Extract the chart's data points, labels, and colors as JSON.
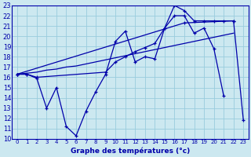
{
  "title": "Graphe des températures (°c)",
  "background_color": "#cce8f0",
  "line_color": "#0000aa",
  "grid_color": "#99ccdd",
  "xlim": [
    -0.5,
    23.5
  ],
  "ylim": [
    10,
    23
  ],
  "x_ticks": [
    0,
    1,
    2,
    3,
    4,
    5,
    6,
    7,
    8,
    9,
    10,
    11,
    12,
    13,
    14,
    15,
    16,
    17,
    18,
    19,
    20,
    21,
    22,
    23
  ],
  "y_ticks": [
    10,
    11,
    12,
    13,
    14,
    15,
    16,
    17,
    18,
    19,
    20,
    21,
    22,
    23
  ],
  "series1_x": [
    0,
    1,
    2,
    3,
    4,
    5,
    6,
    7,
    8,
    9,
    10,
    11,
    12,
    13,
    14,
    15,
    16,
    17,
    18,
    19,
    20,
    21
  ],
  "series1_y": [
    16.3,
    16.3,
    15.9,
    13.0,
    15.0,
    11.2,
    10.3,
    12.7,
    14.6,
    16.3,
    19.5,
    20.5,
    17.5,
    18.0,
    17.8,
    20.8,
    22.0,
    22.0,
    20.3,
    20.8,
    18.8,
    14.2
  ],
  "series2_x": [
    0,
    1,
    2,
    9,
    10,
    11,
    12,
    13,
    14,
    15,
    16,
    17,
    18,
    19,
    20,
    21,
    22
  ],
  "series2_y": [
    16.3,
    16.3,
    16.0,
    16.5,
    17.5,
    18.0,
    18.5,
    18.9,
    19.3,
    20.8,
    23.0,
    22.5,
    21.5,
    21.5,
    21.5,
    21.5,
    21.5
  ],
  "series3_x": [
    0,
    17,
    22,
    23
  ],
  "series3_y": [
    16.3,
    21.3,
    21.5,
    11.8
  ],
  "series4_x": [
    0,
    1,
    2,
    3,
    4,
    5,
    6,
    7,
    8,
    9,
    10,
    11,
    12,
    13,
    14,
    15,
    16,
    17,
    18,
    19,
    20,
    21,
    22
  ],
  "series4_y": [
    16.3,
    16.4,
    16.5,
    16.7,
    16.8,
    17.0,
    17.1,
    17.3,
    17.5,
    17.7,
    17.9,
    18.1,
    18.3,
    18.5,
    18.7,
    18.9,
    19.1,
    19.3,
    19.5,
    19.7,
    19.9,
    20.1,
    20.3
  ]
}
